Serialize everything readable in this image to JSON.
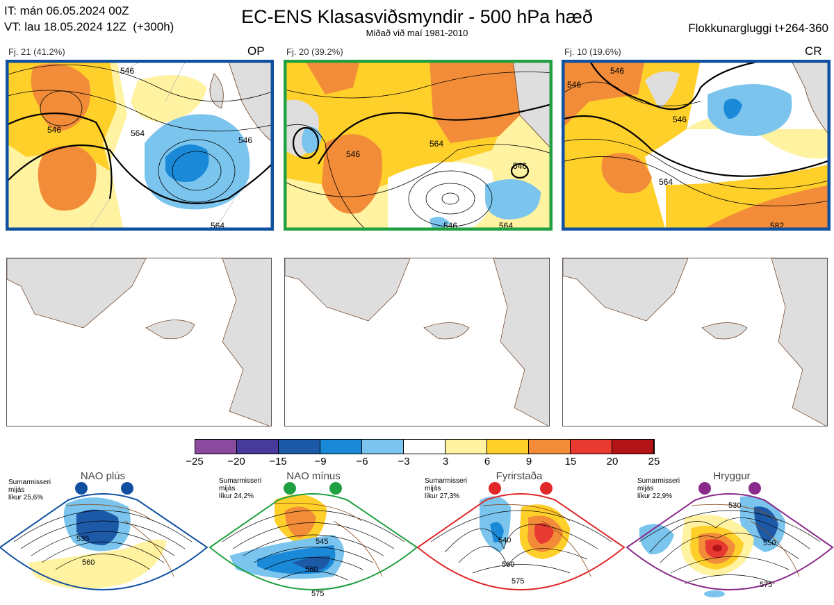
{
  "header": {
    "it_line": "IT: mán 06.05.2024 00Z",
    "vt_line": "VT: lau 18.05.2024 12Z  (+300h)",
    "title": "EC-ENS Klasasviðsmyndir - 500 hPa hæð",
    "subtitle": "Miðað við maí 1981-2010",
    "window": "Flokkunargluggi t+264-360"
  },
  "clusters": [
    {
      "label": "Fj. 21 (41.2%)",
      "code": "OP",
      "frame_color": "#1050a0",
      "contour_labels": [
        "546",
        "546",
        "546",
        "564",
        "564"
      ]
    },
    {
      "label": "Fj. 20 (39.2%)",
      "code": "",
      "frame_color": "#20a040",
      "contour_labels": [
        "546",
        "564",
        "546",
        "546",
        "564"
      ]
    },
    {
      "label": "Fj. 10 (19.6%)",
      "code": "CR",
      "frame_color": "#1050a0",
      "contour_labels": [
        "546",
        "546",
        "546",
        "564",
        "582"
      ]
    }
  ],
  "colorbar": {
    "colors": [
      "#8a4a9e",
      "#483a9a",
      "#1c5aa8",
      "#1a8ad8",
      "#7ac4ee",
      "#ffffff",
      "#fff2a0",
      "#ffcf2a",
      "#f28c38",
      "#e83a30",
      "#b21418"
    ],
    "ticks": [
      "−25",
      "−20",
      "−15",
      "−9",
      "−6",
      "−3",
      "3",
      "6",
      "9",
      "15",
      "20",
      "25"
    ]
  },
  "patterns": [
    {
      "name": "NAO plús",
      "note": "Sumarmisseri\nmijás\nlíkur 25,6%",
      "color": "#1050a0",
      "labels": [
        "535",
        "560"
      ]
    },
    {
      "name": "NAO mínus",
      "note": "Sumarmisseri\nmijás\nlíkur 24,2%",
      "color": "#20a040",
      "labels": [
        "545",
        "560",
        "575"
      ]
    },
    {
      "name": "Fyrirstaða",
      "note": "Sumarmisseri\nmijás\nlíkur 27,3%",
      "color": "#e02828",
      "labels": [
        "540",
        "560",
        "575"
      ]
    },
    {
      "name": "Hryggur",
      "note": "Sumarmisseri\nmijás\nlíkur 22,9%",
      "color": "#8a2a8a",
      "labels": [
        "530",
        "550",
        "575"
      ]
    }
  ]
}
